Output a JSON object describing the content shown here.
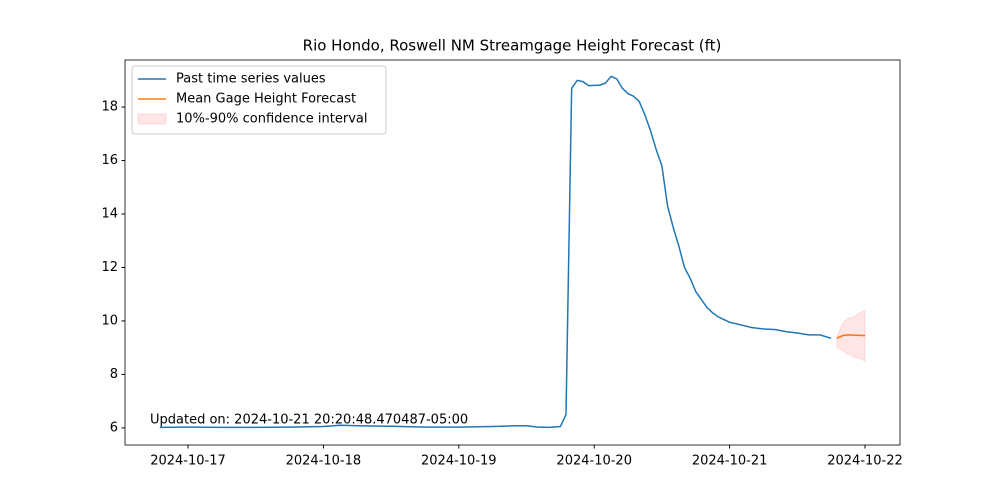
{
  "chart_data": {
    "type": "line",
    "title": "Rio Hondo, Roswell NM Streamgage Height Forecast (ft)",
    "annotation": "Updated on: 2024-10-21 20:20:48.470487-05:00",
    "legend": "upper left",
    "xlim": [
      "2024-10-16T12:50",
      "2024-10-22T06:12"
    ],
    "xticks": [
      "2024-10-17",
      "2024-10-18",
      "2024-10-19",
      "2024-10-20",
      "2024-10-21",
      "2024-10-22"
    ],
    "ylim": [
      5.36,
      19.76
    ],
    "yticks": [
      6,
      8,
      10,
      12,
      14,
      16,
      18
    ],
    "series": [
      {
        "name": "Past time series values",
        "color": "#1f77b4",
        "x": [
          "2024-10-16T19:00",
          "2024-10-17T00:00",
          "2024-10-17T06:00",
          "2024-10-17T12:00",
          "2024-10-17T18:00",
          "2024-10-18T00:00",
          "2024-10-18T03:00",
          "2024-10-18T06:00",
          "2024-10-18T12:00",
          "2024-10-18T18:00",
          "2024-10-19T00:00",
          "2024-10-19T06:00",
          "2024-10-19T10:00",
          "2024-10-19T12:00",
          "2024-10-19T14:00",
          "2024-10-19T16:00",
          "2024-10-19T18:00",
          "2024-10-19T19:00",
          "2024-10-19T20:00",
          "2024-10-19T21:00",
          "2024-10-19T22:00",
          "2024-10-19T23:00",
          "2024-10-20T01:00",
          "2024-10-20T02:00",
          "2024-10-20T03:00",
          "2024-10-20T04:00",
          "2024-10-20T05:00",
          "2024-10-20T06:00",
          "2024-10-20T07:00",
          "2024-10-20T08:00",
          "2024-10-20T09:00",
          "2024-10-20T10:00",
          "2024-10-20T11:00",
          "2024-10-20T12:00",
          "2024-10-20T13:00",
          "2024-10-20T14:00",
          "2024-10-20T15:00",
          "2024-10-20T16:00",
          "2024-10-20T17:00",
          "2024-10-20T18:00",
          "2024-10-20T19:00",
          "2024-10-20T20:00",
          "2024-10-20T21:00",
          "2024-10-20T22:00",
          "2024-10-20T23:00",
          "2024-10-21T00:00",
          "2024-10-21T02:00",
          "2024-10-21T04:00",
          "2024-10-21T06:00",
          "2024-10-21T08:00",
          "2024-10-21T10:00",
          "2024-10-21T12:00",
          "2024-10-21T14:00",
          "2024-10-21T16:00",
          "2024-10-21T18:00"
        ],
        "values": [
          6.02,
          6.03,
          6.02,
          6.02,
          6.03,
          6.05,
          6.1,
          6.08,
          6.06,
          6.03,
          6.03,
          6.05,
          6.08,
          6.08,
          6.03,
          6.02,
          6.05,
          6.5,
          18.7,
          19.0,
          18.95,
          18.8,
          18.82,
          18.9,
          19.15,
          19.05,
          18.7,
          18.5,
          18.4,
          18.2,
          17.7,
          17.1,
          16.4,
          15.8,
          14.3,
          13.5,
          12.8,
          12.0,
          11.6,
          11.1,
          10.8,
          10.5,
          10.3,
          10.15,
          10.05,
          9.95,
          9.85,
          9.75,
          9.7,
          9.68,
          9.6,
          9.55,
          9.48,
          9.48,
          9.35
        ]
      },
      {
        "name": "Mean Gage Height Forecast",
        "color": "#ff7f0e",
        "x": [
          "2024-10-21T19:00",
          "2024-10-21T20:00",
          "2024-10-21T21:00",
          "2024-10-21T22:00",
          "2024-10-21T23:00",
          "2024-10-22T00:00"
        ],
        "values": [
          9.35,
          9.45,
          9.48,
          9.47,
          9.46,
          9.45
        ]
      },
      {
        "name": "10%-90% confidence interval",
        "color": "#ff0000",
        "alpha": 0.1,
        "x": [
          "2024-10-21T19:00",
          "2024-10-21T20:00",
          "2024-10-21T21:00",
          "2024-10-21T22:00",
          "2024-10-21T23:00",
          "2024-10-22T00:00"
        ],
        "lower": [
          9.0,
          8.9,
          8.75,
          8.65,
          8.6,
          8.5
        ],
        "upper": [
          9.4,
          9.9,
          10.1,
          10.15,
          10.3,
          10.4
        ]
      }
    ]
  }
}
